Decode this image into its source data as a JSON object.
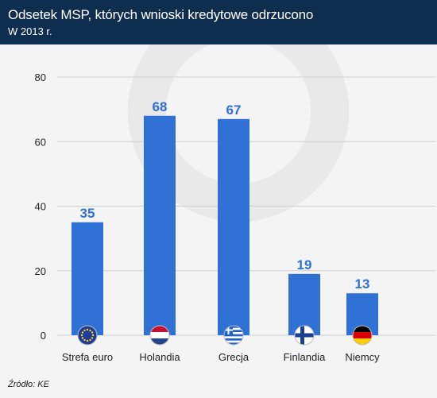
{
  "header": {
    "title": "Odsetek MSP, których wnioski kredytowe odrzucono",
    "subtitle": "W 2013 r."
  },
  "footer": {
    "source": "Źródło: KE"
  },
  "colors": {
    "header_bg": "#0f2d4f",
    "bar": "#2f71d4",
    "label": "#2f71d4",
    "background": "#f4f4f4"
  },
  "chart_data": {
    "type": "bar",
    "categories": [
      "Strefa euro",
      "Holandia",
      "Grecja",
      "Finlandia",
      "Niemcy"
    ],
    "values": [
      35,
      68,
      67,
      19,
      13
    ],
    "data_labels": [
      "35",
      "68",
      "67",
      "19",
      "13"
    ],
    "flags": [
      "eu-flag-icon",
      "netherlands-flag-icon",
      "greece-flag-icon",
      "finland-flag-icon",
      "germany-flag-icon"
    ],
    "yticks": [
      "0",
      "20",
      "40",
      "60",
      "80"
    ],
    "ytick_values": [
      0,
      20,
      40,
      60,
      80
    ],
    "ylim": [
      0,
      80
    ],
    "grid": true
  }
}
